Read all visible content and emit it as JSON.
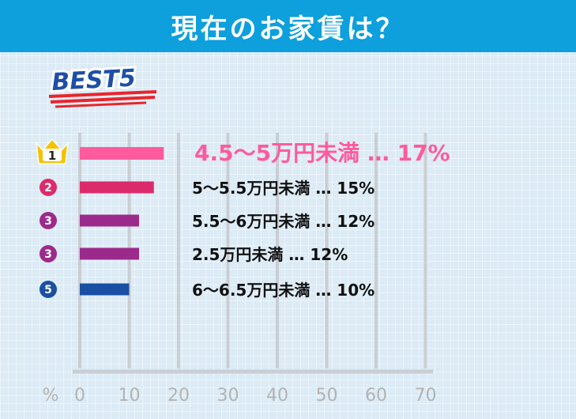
{
  "header": {
    "title": "現在のお家賃は？"
  },
  "badge": {
    "text": "BEST5"
  },
  "chart_data": {
    "type": "bar",
    "orientation": "horizontal",
    "title": "現在のお家賃は？",
    "unit_label": "%",
    "xlim": [
      0,
      70
    ],
    "ticks": [
      "0",
      "10",
      "20",
      "30",
      "40",
      "50",
      "60",
      "70"
    ],
    "grid": true,
    "rows": [
      {
        "rank": "1",
        "category": "4.5〜5万円未満",
        "value": 17,
        "display": "17%",
        "bar_color": "#ff5a9e",
        "text_color": "#ff5a9e",
        "rank_color": "#f5c200",
        "crown": true
      },
      {
        "rank": "2",
        "category": "5〜5.5万円未満",
        "value": 15,
        "display": "15%",
        "bar_color": "#dc2b6b",
        "text_color": "#111111",
        "rank_color": "#dc2b6b",
        "crown": false
      },
      {
        "rank": "3",
        "category": "5.5〜6万円未満",
        "value": 12,
        "display": "12%",
        "bar_color": "#9c2a8c",
        "text_color": "#111111",
        "rank_color": "#9c2a8c",
        "crown": false
      },
      {
        "rank": "3",
        "category": "2.5万円未満",
        "value": 12,
        "display": "12%",
        "bar_color": "#9c2a8c",
        "text_color": "#111111",
        "rank_color": "#9c2a8c",
        "crown": false
      },
      {
        "rank": "5",
        "category": "6〜6.5万円未満",
        "value": 10,
        "display": "10%",
        "bar_color": "#1a4fa3",
        "text_color": "#111111",
        "rank_color": "#1a4fa3",
        "crown": false
      }
    ]
  }
}
